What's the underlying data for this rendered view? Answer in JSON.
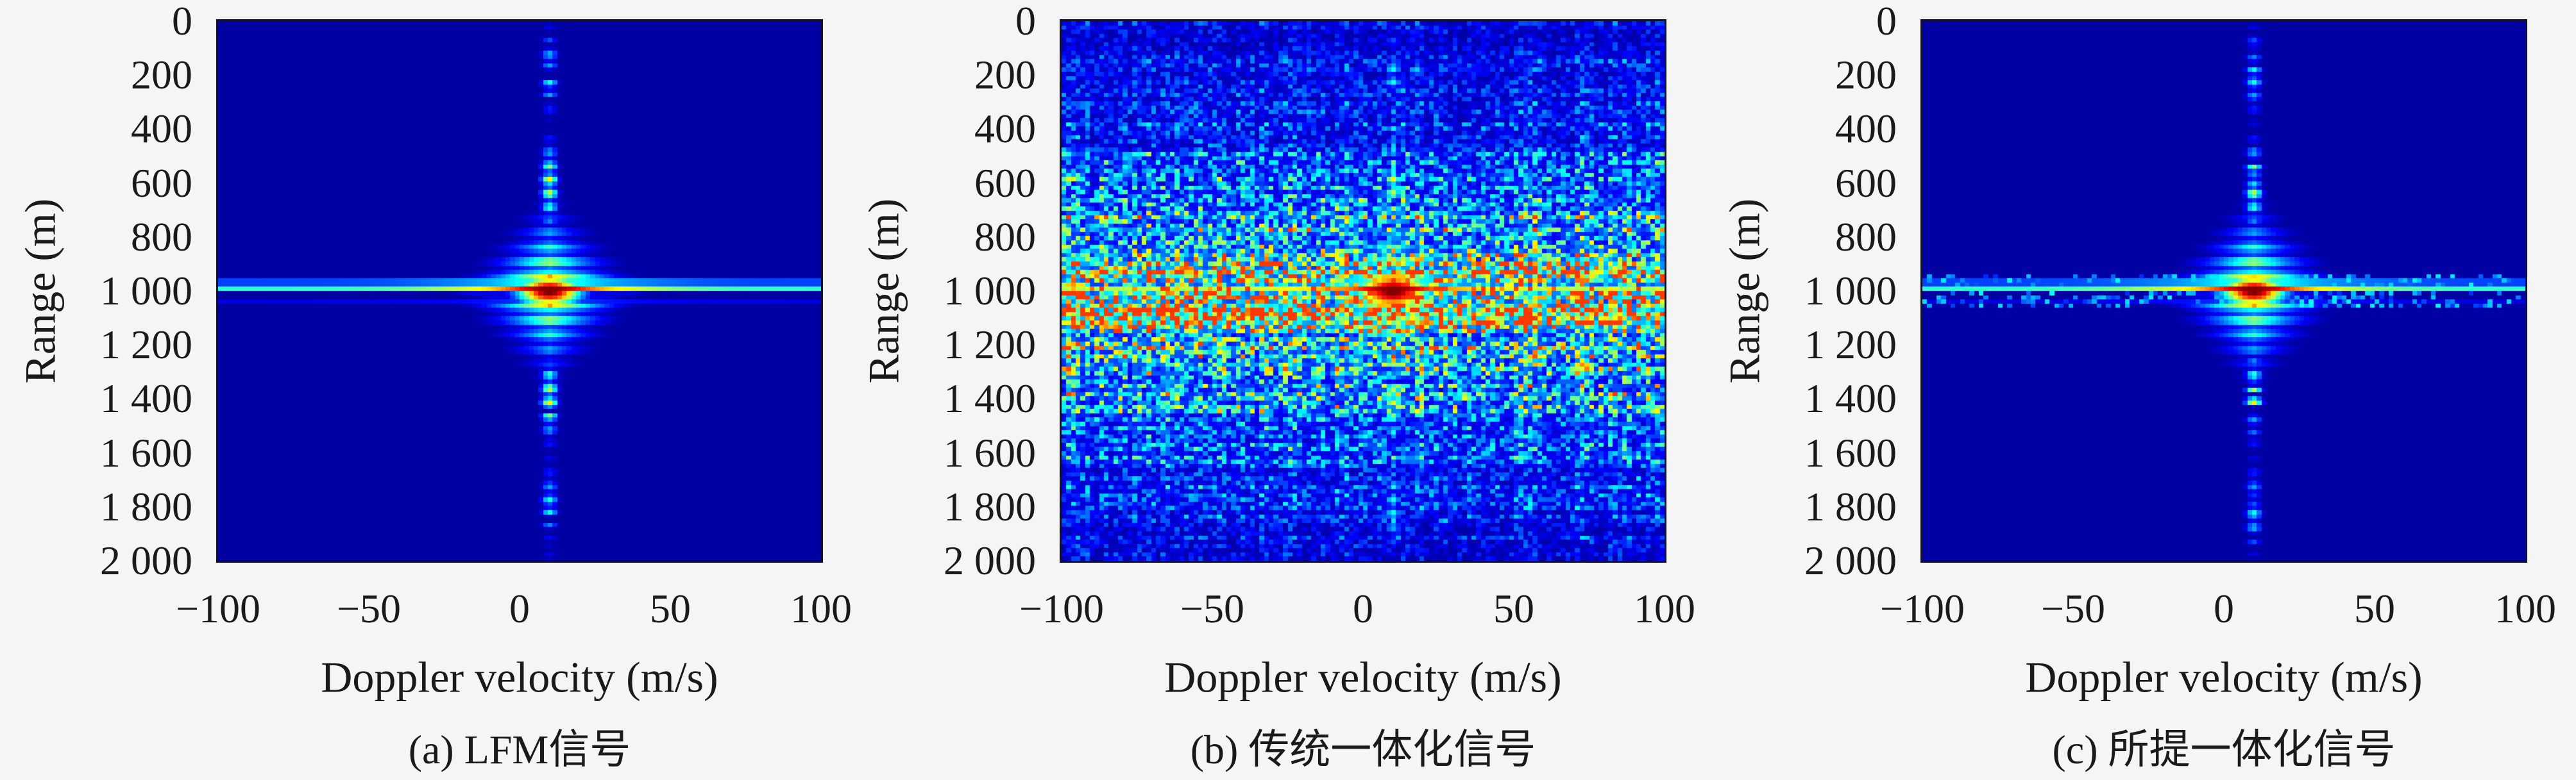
{
  "page": {
    "background": "#f5f5f6",
    "frame_color": "#10102a",
    "text_color": "#1a1a1a"
  },
  "figure": {
    "ylabel": "Range (m)",
    "xlabel": "Doppler velocity (m/s)",
    "y_tick_labels": [
      "0",
      "200",
      "400",
      "600",
      "800",
      "1 000",
      "1 200",
      "1 400",
      "1 600",
      "1 800",
      "2 000"
    ],
    "x_tick_labels": [
      "−100",
      "−50",
      "0",
      "50",
      "100"
    ],
    "subplots": [
      {
        "id": "a",
        "caption": "(a) LFM信号"
      },
      {
        "id": "b",
        "caption": "(b) 传统一体化信号"
      },
      {
        "id": "c",
        "caption": "(c) 所提一体化信号"
      }
    ]
  },
  "chart_data": [
    {
      "type": "heatmap",
      "title": "(a) LFM信号",
      "xlabel": "Doppler velocity (m/s)",
      "ylabel": "Range (m)",
      "xlim": [
        -100,
        100
      ],
      "ylim": [
        0,
        2000
      ],
      "y_axis_direction": "0 at top, 2000 at bottom",
      "x_ticks": [
        -100,
        -50,
        0,
        50,
        100
      ],
      "y_ticks": [
        0,
        200,
        400,
        600,
        800,
        1000,
        1200,
        1400,
        1600,
        1800,
        2000
      ],
      "colormap": "jet",
      "background_level": "minimum (dark navy)",
      "peak": {
        "doppler_mps": 10,
        "range_m": 1000
      },
      "pattern": "clean thumbtack ambiguity surface: strong mainlobe at (10 m/s, 1000 m); continuous bright range ridge along range = 1000 m spanning all Doppler with dark shadow line just below it; beaded dashed Doppler ridge along doppler = 10 m/s spanning 0-2000 m; diamond-shaped near-in sidelobe glow with horizontal striations around the mainlobe",
      "render": {
        "seed": 7,
        "noise": 0,
        "line_speckle": 0,
        "grid": [
          128,
          128
        ]
      }
    },
    {
      "type": "heatmap",
      "title": "(b) 传统一体化信号",
      "xlabel": "Doppler velocity (m/s)",
      "ylabel": "Range (m)",
      "xlim": [
        -100,
        100
      ],
      "ylim": [
        0,
        2000
      ],
      "y_axis_direction": "0 at top, 2000 at bottom",
      "x_ticks": [
        -100,
        -50,
        0,
        50,
        100
      ],
      "y_ticks": [
        0,
        200,
        400,
        600,
        800,
        1000,
        1200,
        1400,
        1600,
        1800,
        2000
      ],
      "colormap": "jet",
      "background_level": "raised noise pedestal (speckled blue/cyan over whole map)",
      "peak": {
        "doppler_mps": 10,
        "range_m": 1000
      },
      "pattern": "same mainlobe and orange range ridge at 1000 m, but with a strong random speckle-noise pedestal over all Doppler; noise concentrated in range band ~600-1400 m with bright green/yellow speckle bands near 930 m and 1080 m, dark lanes near 845 m and 1165 m; red dashed Doppler segments only near the mainlobe; speckle fades toward range 0 and 2000",
      "render": {
        "seed": 13,
        "noise": 1,
        "line_speckle": 0,
        "grid": [
          128,
          128
        ]
      }
    },
    {
      "type": "heatmap",
      "title": "(c) 所提一体化信号",
      "xlabel": "Doppler velocity (m/s)",
      "ylabel": "Range (m)",
      "xlim": [
        -100,
        100
      ],
      "ylim": [
        0,
        2000
      ],
      "y_axis_direction": "0 at top, 2000 at bottom",
      "x_ticks": [
        -100,
        -50,
        0,
        50,
        100
      ],
      "y_ticks": [
        0,
        200,
        400,
        600,
        800,
        1000,
        1200,
        1400,
        1600,
        1800,
        2000
      ],
      "colormap": "jet",
      "background_level": "minimum (dark navy)",
      "peak": {
        "doppler_mps": 10,
        "range_m": 1000
      },
      "pattern": "thumbtack ambiguity surface like (a): mainlobe at (10 m/s, 1000 m), cyan range ridge with shadow line below, beaded Doppler ridge, diamond near-in sidelobe glow; additionally faint blue speckle scattered along the range ridge vicinity",
      "render": {
        "seed": 21,
        "noise": 0,
        "line_speckle": 1,
        "grid": [
          128,
          128
        ]
      }
    }
  ]
}
